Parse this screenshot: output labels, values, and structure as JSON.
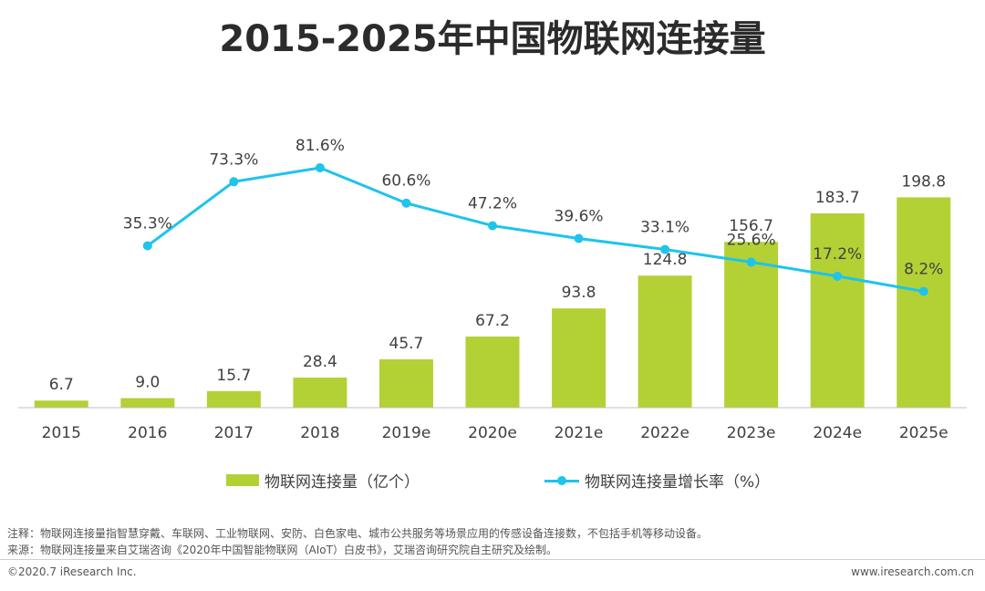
{
  "title": "2015-2025年中国物联网连接量",
  "chart_data": {
    "type": "bar+line",
    "categories": [
      "2015",
      "2016",
      "2017",
      "2018",
      "2019e",
      "2020e",
      "2021e",
      "2022e",
      "2023e",
      "2024e",
      "2025e"
    ],
    "series": [
      {
        "name": "物联网连接量（亿个）",
        "type": "bar",
        "values": [
          6.7,
          9.0,
          15.7,
          28.4,
          45.7,
          67.2,
          93.8,
          124.8,
          156.7,
          183.7,
          198.8
        ],
        "labels": [
          "6.7",
          "9.0",
          "15.7",
          "28.4",
          "45.7",
          "67.2",
          "93.8",
          "124.8",
          "156.7",
          "183.7",
          "198.8"
        ]
      },
      {
        "name": "物联网连接量增长率（%）",
        "type": "line",
        "values": [
          null,
          35.3,
          73.3,
          81.6,
          60.6,
          47.2,
          39.6,
          33.1,
          25.6,
          17.2,
          8.2
        ],
        "labels": [
          "",
          "35.3%",
          "73.3%",
          "81.6%",
          "60.6%",
          "47.2%",
          "39.6%",
          "33.1%",
          "25.6%",
          "17.2%",
          "8.2%"
        ]
      }
    ],
    "bar_color": "#b3d135",
    "line_color": "#1ec4ec",
    "bar_ylim": [
      0,
      256
    ],
    "line_ylim": [
      -95,
      100
    ],
    "grid": false
  },
  "legend": {
    "bar_label": "物联网连接量（亿个）",
    "line_label": "物联网连接量增长率（%）"
  },
  "notes": {
    "note": "注释：物联网连接量指智慧穿戴、车联网、工业物联网、安防、白色家电、城市公共服务等场景应用的传感设备连接数，不包括手机等移动设备。",
    "source": "来源：物联网连接量来自艾瑞咨询《2020年中国智能物联网（AIoT）白皮书》，艾瑞咨询研究院自主研究及绘制。"
  },
  "footer": {
    "copyright": "©2020.7 iResearch Inc.",
    "website": "www.iresearch.com.cn"
  }
}
